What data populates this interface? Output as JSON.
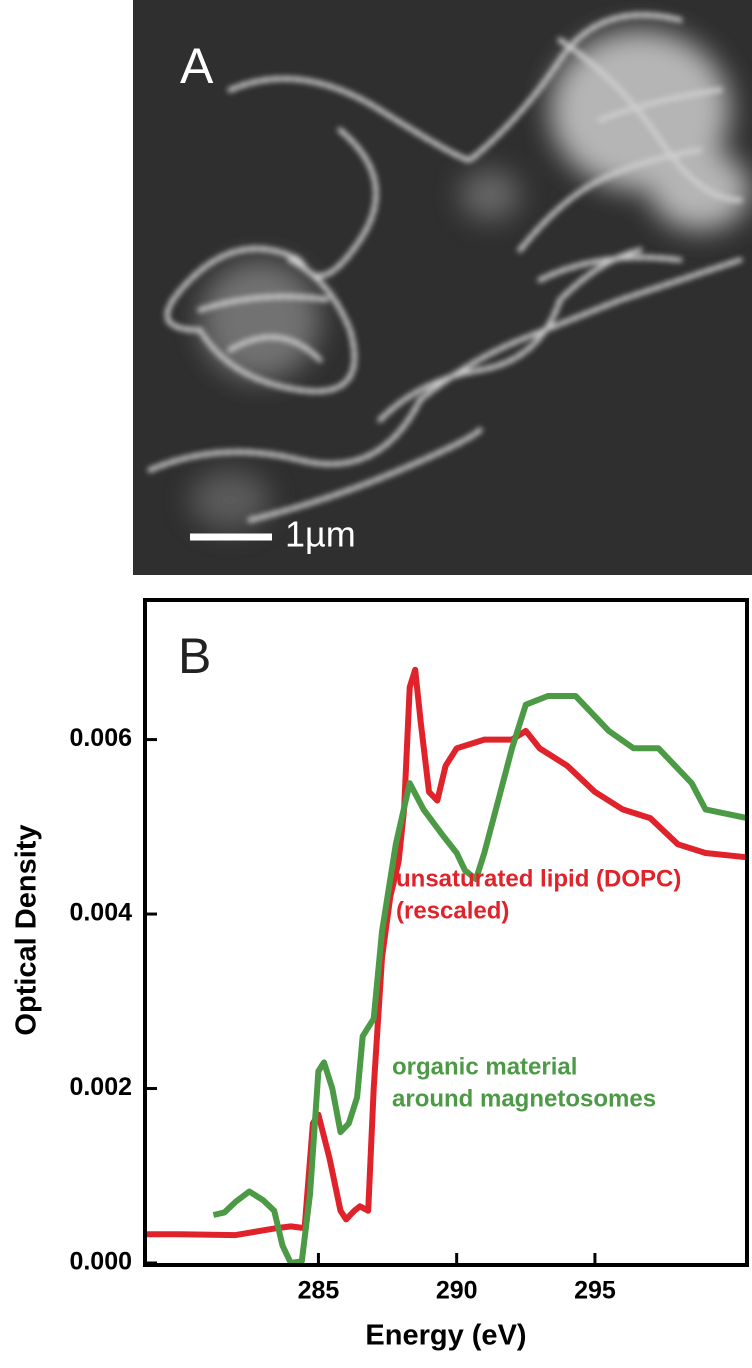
{
  "panel_a": {
    "label": "A",
    "scale_bar": "1µm"
  },
  "chart_data": {
    "type": "line",
    "panel_label": "B",
    "x_label": "Energy (eV)",
    "y_label": "Optical Density",
    "xlim": [
      278.8,
      300.5
    ],
    "xticks": [
      285,
      290,
      295
    ],
    "ylim": [
      0,
      0.0076
    ],
    "yticks": [
      {
        "value": 0,
        "label": "0.000"
      },
      {
        "value": 0.002,
        "label": "0.002"
      },
      {
        "value": 0.004,
        "label": "0.004"
      },
      {
        "value": 0.006,
        "label": "0.006"
      }
    ],
    "series": [
      {
        "color": "#e0232b",
        "x": [
          278.8,
          280,
          282,
          283.5,
          284.0,
          284.5,
          284.8,
          285.0,
          285.4,
          285.8,
          286.0,
          286.3,
          286.5,
          286.8,
          287.0,
          287.3,
          287.6,
          287.9,
          288.1,
          288.3,
          288.5,
          288.7,
          289.0,
          289.3,
          289.6,
          290,
          291,
          292,
          292.5,
          293,
          294,
          295,
          296,
          297,
          298,
          299,
          300.5
        ],
        "values": [
          0.00033,
          0.00033,
          0.00032,
          0.0004,
          0.00042,
          0.0004,
          0.0016,
          0.0017,
          0.0012,
          0.0006,
          0.0005,
          0.0006,
          0.00065,
          0.0006,
          0.002,
          0.0035,
          0.0042,
          0.0046,
          0.0052,
          0.0066,
          0.0068,
          0.0062,
          0.0054,
          0.0053,
          0.0057,
          0.0059,
          0.006,
          0.006,
          0.0061,
          0.0059,
          0.0057,
          0.0054,
          0.0052,
          0.0051,
          0.0048,
          0.0047,
          0.00465
        ]
      },
      {
        "color": "#4c9a45",
        "x": [
          281.2,
          281.6,
          282.0,
          282.5,
          283.0,
          283.4,
          283.7,
          284.0,
          284.4,
          284.7,
          285.0,
          285.2,
          285.5,
          285.8,
          286.1,
          286.4,
          286.6,
          287.0,
          287.3,
          287.8,
          288.3,
          288.8,
          289.5,
          290.0,
          290.3,
          290.7,
          291.0,
          291.5,
          292.0,
          292.5,
          293.3,
          294.3,
          295.5,
          296.4,
          297.3,
          298.5,
          299.0,
          300.5
        ],
        "values": [
          0.00055,
          0.00058,
          0.0007,
          0.00082,
          0.00072,
          0.0006,
          0.0002,
          0.0,
          2e-05,
          0.0008,
          0.0022,
          0.0023,
          0.002,
          0.0015,
          0.0016,
          0.0019,
          0.0026,
          0.0028,
          0.0038,
          0.0048,
          0.0055,
          0.0052,
          0.0049,
          0.0047,
          0.0045,
          0.0044,
          0.0047,
          0.0053,
          0.0059,
          0.0064,
          0.0065,
          0.0065,
          0.0061,
          0.0059,
          0.0059,
          0.0055,
          0.0052,
          0.0051
        ]
      }
    ],
    "annotations": [
      {
        "text": "unsaturated lipid (DOPC)",
        "color": "#e0232b"
      },
      {
        "text": "(rescaled)",
        "color": "#e0232b"
      },
      {
        "text": "organic material",
        "color": "#4c9a45"
      },
      {
        "text": "around magnetosomes",
        "color": "#4c9a45"
      }
    ]
  }
}
